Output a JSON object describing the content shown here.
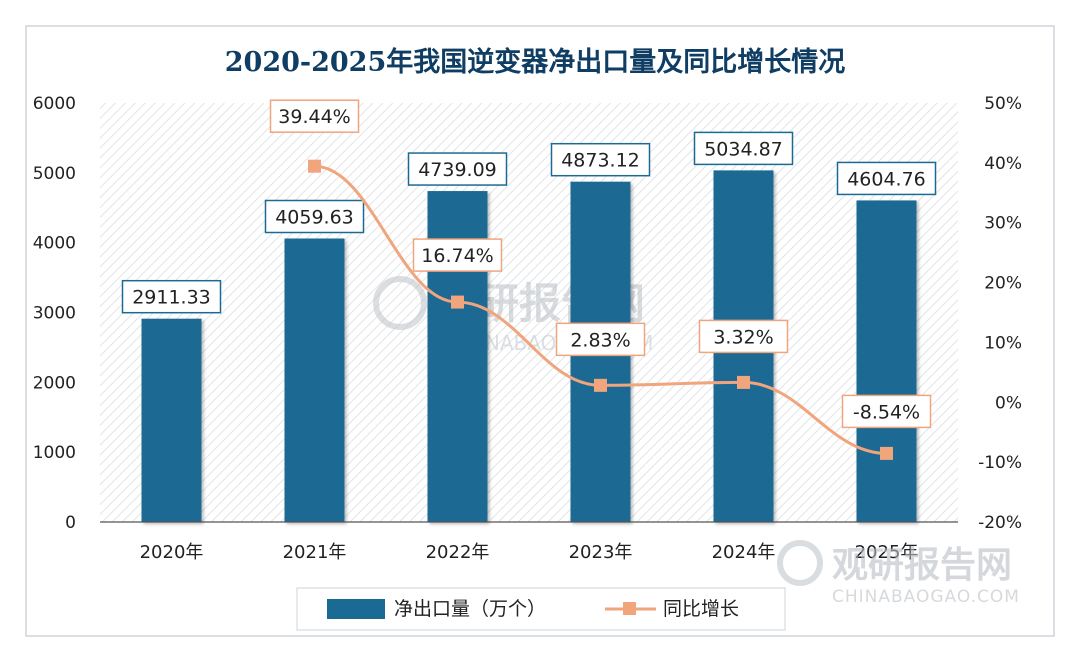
{
  "chart_data": {
    "type": "bar+line",
    "title": "2020-2025年我国逆变器净出口量及同比增长情况",
    "categories": [
      "2020年",
      "2021年",
      "2022年",
      "2023年",
      "2024年",
      "2025年"
    ],
    "series": [
      {
        "name": "净出口量（万个）",
        "type": "bar",
        "axis": "left",
        "values": [
          2911.33,
          4059.63,
          4739.09,
          4873.12,
          5034.87,
          4604.76
        ],
        "labels": [
          "2911.33",
          "4059.63",
          "4739.09",
          "4873.12",
          "5034.87",
          "4604.76"
        ],
        "color": "#1b6a94"
      },
      {
        "name": "同比增长",
        "type": "line",
        "axis": "right",
        "values": [
          null,
          39.44,
          16.74,
          2.83,
          3.32,
          -8.54
        ],
        "labels": [
          "",
          "39.44%",
          "16.74%",
          "2.83%",
          "3.32%",
          "-8.54%"
        ],
        "color": "#f0a57d"
      }
    ],
    "y_left": {
      "range": [
        0,
        6000
      ],
      "ticks": [
        0,
        1000,
        2000,
        3000,
        4000,
        5000,
        6000
      ],
      "tick_labels": [
        "0",
        "1000",
        "2000",
        "3000",
        "4000",
        "5000",
        "6000"
      ]
    },
    "y_right": {
      "range": [
        -20,
        50
      ],
      "ticks": [
        -20,
        -10,
        0,
        10,
        20,
        30,
        40,
        50
      ],
      "tick_labels": [
        "-20%",
        "-10%",
        "0%",
        "10%",
        "20%",
        "30%",
        "40%",
        "50%"
      ]
    },
    "legend": {
      "position": "bottom"
    },
    "grid": false
  },
  "watermark": {
    "text": "观研报告网",
    "url": "CHINABAOGAO.COM"
  },
  "colors": {
    "bar": "#1b6a94",
    "line": "#f0a57d",
    "title": "#0f3d63",
    "label_border": "#1b6a94",
    "line_label_border": "#f0a57d",
    "plot_stripe": "#e1e4e8"
  }
}
